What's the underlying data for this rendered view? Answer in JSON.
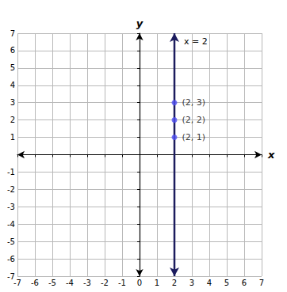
{
  "chart_data": {
    "type": "line",
    "xlabel": "x",
    "ylabel": "y",
    "xlim": [
      -7,
      7
    ],
    "ylim": [
      -7,
      7
    ],
    "xticks": [
      -7,
      -6,
      -5,
      -4,
      -3,
      -2,
      -1,
      0,
      1,
      2,
      3,
      4,
      5,
      6,
      7
    ],
    "yticks": [
      -7,
      -6,
      -5,
      -4,
      -3,
      -2,
      -1,
      1,
      2,
      3,
      4,
      5,
      6,
      7
    ],
    "grid": true,
    "series": [
      {
        "name": "x = 2",
        "color": "#1c1c5e",
        "x": [
          2,
          2
        ],
        "values": [
          -7,
          7
        ]
      }
    ],
    "points": {
      "x": [
        2,
        2,
        2
      ],
      "values": [
        1,
        2,
        3
      ],
      "labels": [
        "(2, 1)",
        "(2, 2)",
        "(2, 3)"
      ],
      "color": "#4f4ff2",
      "marker": "circle"
    }
  }
}
